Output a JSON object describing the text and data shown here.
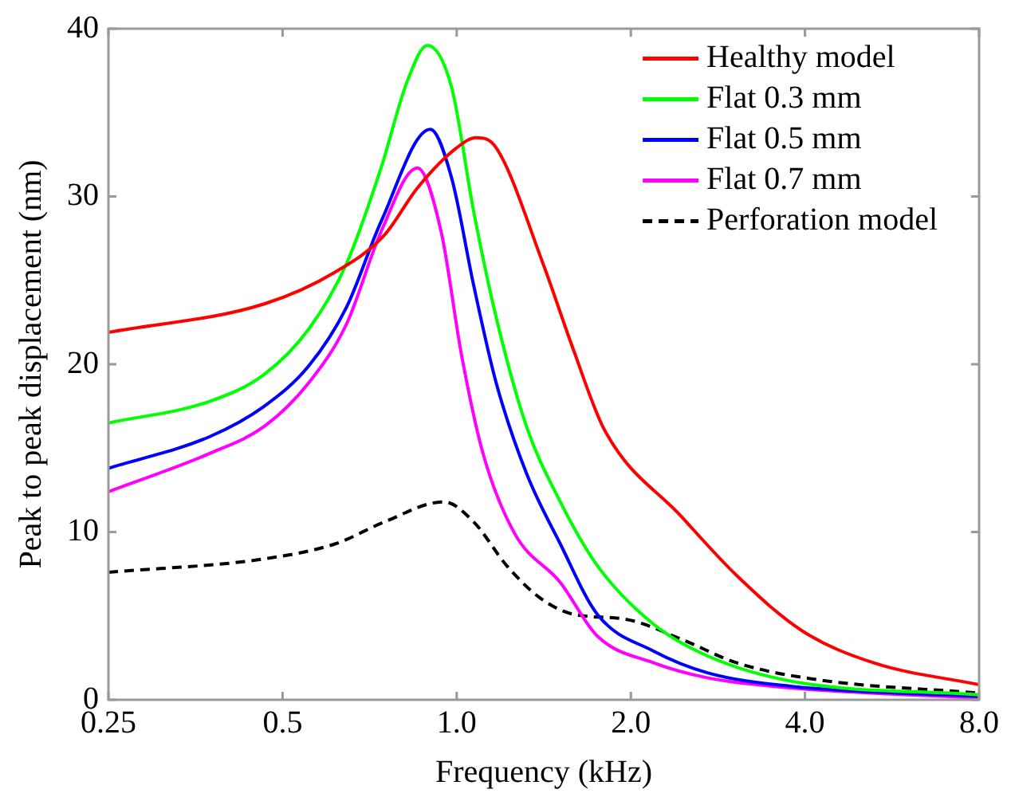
{
  "chart_data": {
    "type": "line",
    "xlabel": "Frequency (kHz)",
    "ylabel": "Peak to peak displacement (nm)",
    "log": "x",
    "xlim": [
      0.25,
      8
    ],
    "xticks": [
      0.25,
      0.5,
      {
        "value": 1,
        "label": "1.0"
      },
      {
        "value": 2,
        "label": "2.0"
      },
      {
        "value": 4,
        "label": "4.0"
      },
      {
        "value": 8,
        "label": "8.0"
      }
    ],
    "ylim": [
      0,
      40
    ],
    "yticks": [
      0,
      10,
      20,
      30,
      40
    ],
    "legend": "top right",
    "marker": "none",
    "series": [
      {
        "name": "Healthy model",
        "color": "#ff0000",
        "line_style": "solid",
        "x": [
          0.25,
          0.465,
          0.617,
          0.75,
          0.855,
          1.0,
          1.08,
          1.17,
          1.41,
          1.59,
          1.8,
          2.45,
          3.05,
          3.96,
          5.26,
          8.0
        ],
        "values": [
          21.9,
          23.6,
          25.5,
          27.7,
          30.5,
          32.9,
          33.5,
          32.9,
          26.0,
          20.9,
          16.1,
          10.9,
          7.4,
          4.1,
          2.2,
          0.9
        ]
      },
      {
        "name": "Flat 0.3 mm",
        "color": "#00ff00",
        "line_style": "solid",
        "x": [
          0.25,
          0.375,
          0.465,
          0.555,
          0.645,
          0.74,
          0.82,
          0.89,
          0.98,
          1.07,
          1.17,
          1.32,
          1.5,
          1.75,
          2.19,
          2.72,
          3.8,
          8.0
        ],
        "values": [
          16.5,
          17.8,
          19.4,
          22.1,
          26.0,
          31.7,
          36.8,
          39.0,
          36.5,
          29.1,
          22.8,
          16.3,
          12.0,
          8.0,
          4.5,
          2.6,
          1.1,
          0.3
        ]
      },
      {
        "name": "Flat 0.5 mm",
        "color": "#0000ff",
        "line_style": "solid",
        "x": [
          0.25,
          0.375,
          0.465,
          0.555,
          0.645,
          0.74,
          0.9,
          0.98,
          1.07,
          1.17,
          1.32,
          1.51,
          1.75,
          2.19,
          2.72,
          3.8,
          8.0
        ],
        "values": [
          13.8,
          15.7,
          17.5,
          19.9,
          23.4,
          28.5,
          34.0,
          31.1,
          24.7,
          18.9,
          13.5,
          9.3,
          5.1,
          2.9,
          1.6,
          0.8,
          0.2
        ]
      },
      {
        "name": "Flat 0.7 mm",
        "color": "#ff00ff",
        "line_style": "solid",
        "x": [
          0.25,
          0.375,
          0.465,
          0.555,
          0.645,
          0.74,
          0.855,
          0.94,
          1.02,
          1.11,
          1.26,
          1.51,
          1.75,
          2.19,
          2.72,
          3.8,
          8.0
        ],
        "values": [
          12.4,
          14.7,
          16.3,
          18.9,
          22.4,
          27.9,
          31.7,
          27.9,
          20.5,
          14.7,
          9.9,
          7.0,
          3.8,
          2.2,
          1.3,
          0.7,
          0.1
        ]
      },
      {
        "name": "Perforation model",
        "color": "#000000",
        "line_style": "dashed",
        "x": [
          0.25,
          0.465,
          0.617,
          0.75,
          0.95,
          1.07,
          1.22,
          1.39,
          1.59,
          1.96,
          2.45,
          3.05,
          4.2,
          8.0
        ],
        "values": [
          7.6,
          8.4,
          9.3,
          10.6,
          11.8,
          10.6,
          8.0,
          6.1,
          5.1,
          4.8,
          3.6,
          2.2,
          1.2,
          0.4
        ]
      }
    ]
  }
}
